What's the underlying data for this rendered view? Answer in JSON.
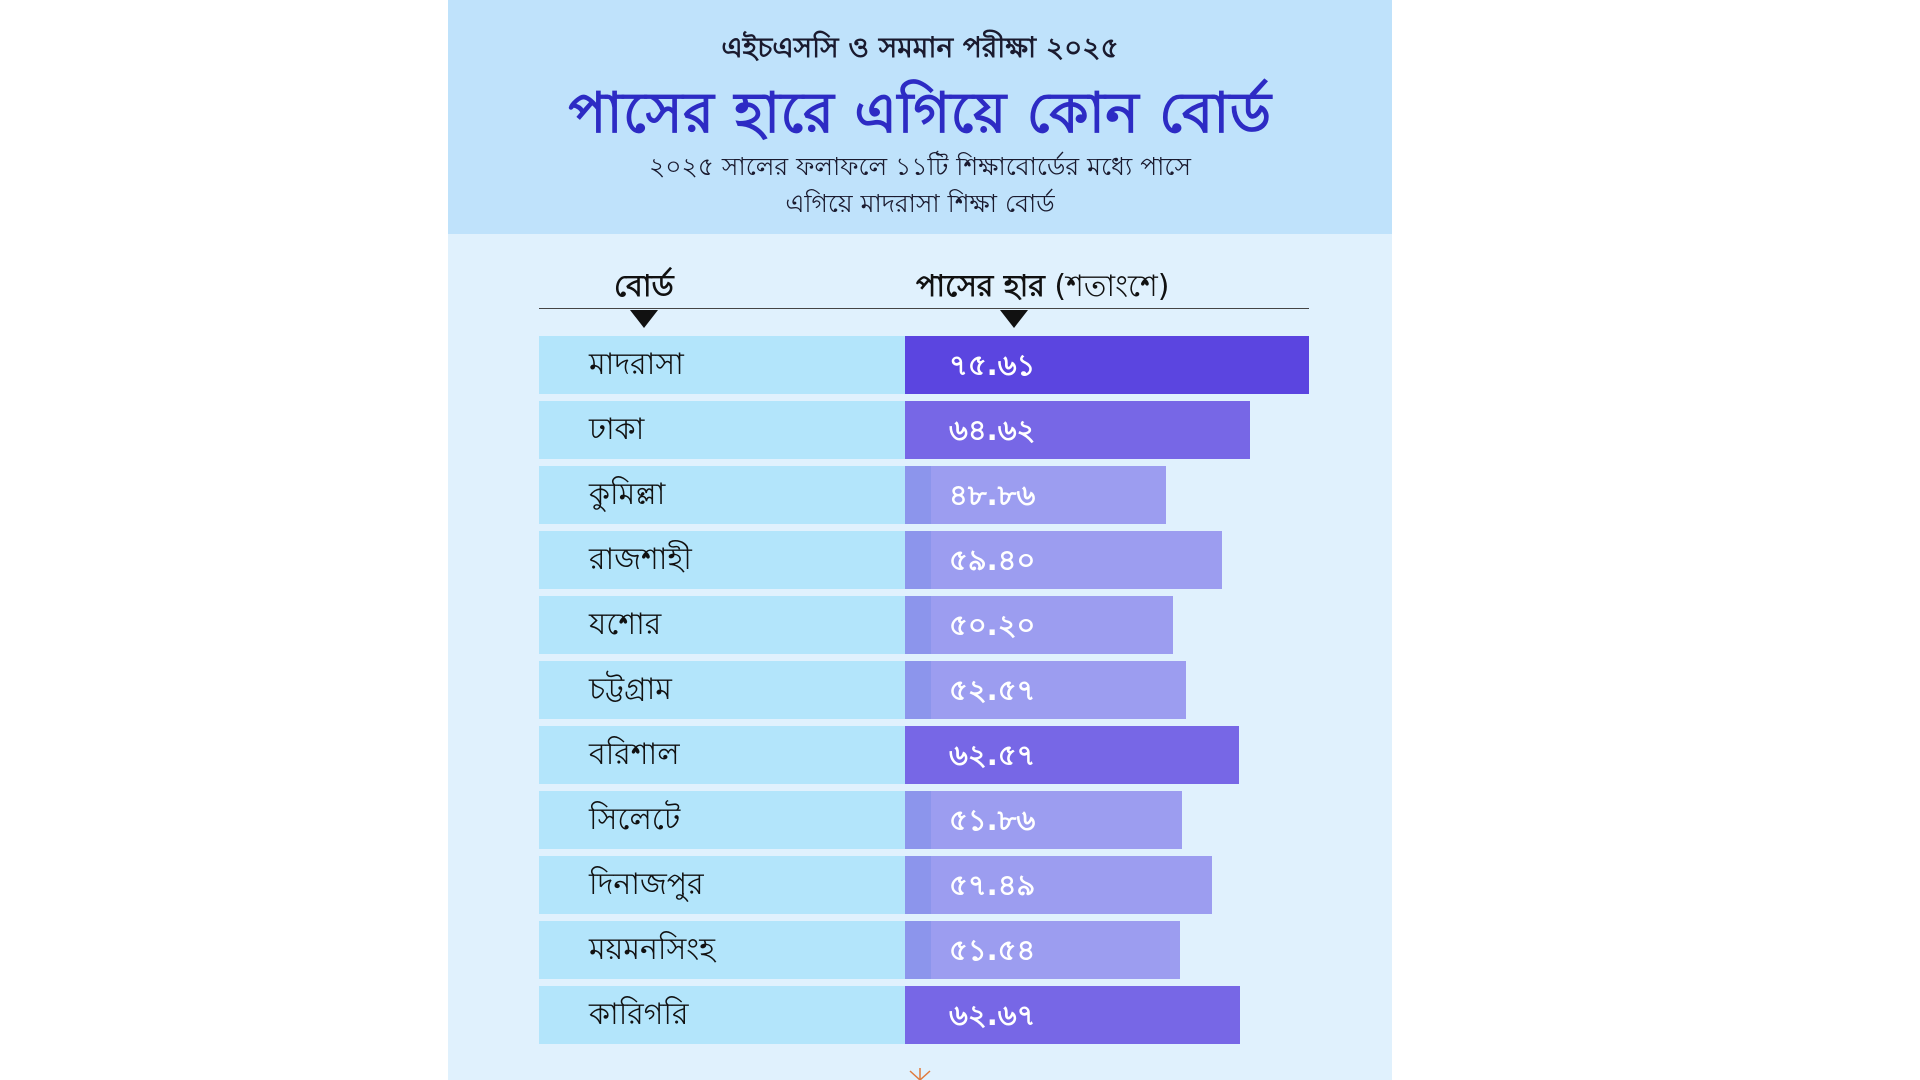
{
  "header": {
    "kicker": "এইচএসসি ও সমমান পরীক্ষা ২০২৫",
    "title": "পাসের হারে এগিয়ে কোন বোর্ড",
    "subtitle_line1": "২০২৫ সালের ফলাফলে ১১টি শিক্ষাবোর্ডের মধ্যে পাসে",
    "subtitle_line2": "এগিয়ে মাদরাসা শিক্ষা বোর্ড"
  },
  "columns": {
    "board": "বোর্ড",
    "rate": "পাসের হার",
    "rate_unit": "(শতাংশে)"
  },
  "colors": {
    "header_bg": "#bfe2fb",
    "card_bg": "#e0f1fd",
    "label_bg": "#b3e5fb",
    "title": "#2d2bc4",
    "bar_top": "#5b45e0",
    "bar_high": "#7767e6",
    "bar_low": "#9c9df0"
  },
  "chart_data": {
    "type": "bar",
    "orientation": "horizontal",
    "title": "পাসের হারে এগিয়ে কোন বোর্ড",
    "xlabel": "পাসের হার (শতাংশে)",
    "ylabel": "বোর্ড",
    "xlim": [
      0,
      75.61
    ],
    "categories": [
      "মাদরাসা",
      "ঢাকা",
      "কুমিল্লা",
      "রাজশাহী",
      "যশোর",
      "চট্টগ্রাম",
      "বরিশাল",
      "সিলেটে",
      "দিনাজপুর",
      "ময়মনসিংহ",
      "কারিগরি"
    ],
    "values": [
      75.61,
      64.62,
      48.86,
      59.4,
      50.2,
      52.57,
      62.57,
      51.86,
      57.49,
      51.54,
      62.67
    ],
    "value_labels": [
      "৭৫.৬১",
      "৬৪.৬২",
      "৪৮.৮৬",
      "৫৯.৪০",
      "৫০.২০",
      "৫২.৫৭",
      "৬২.৫৭",
      "৫১.৮৬",
      "৫৭.৪৯",
      "৫১.৫৪",
      "৬২.৬৭"
    ],
    "grid": false,
    "legend": "none"
  }
}
